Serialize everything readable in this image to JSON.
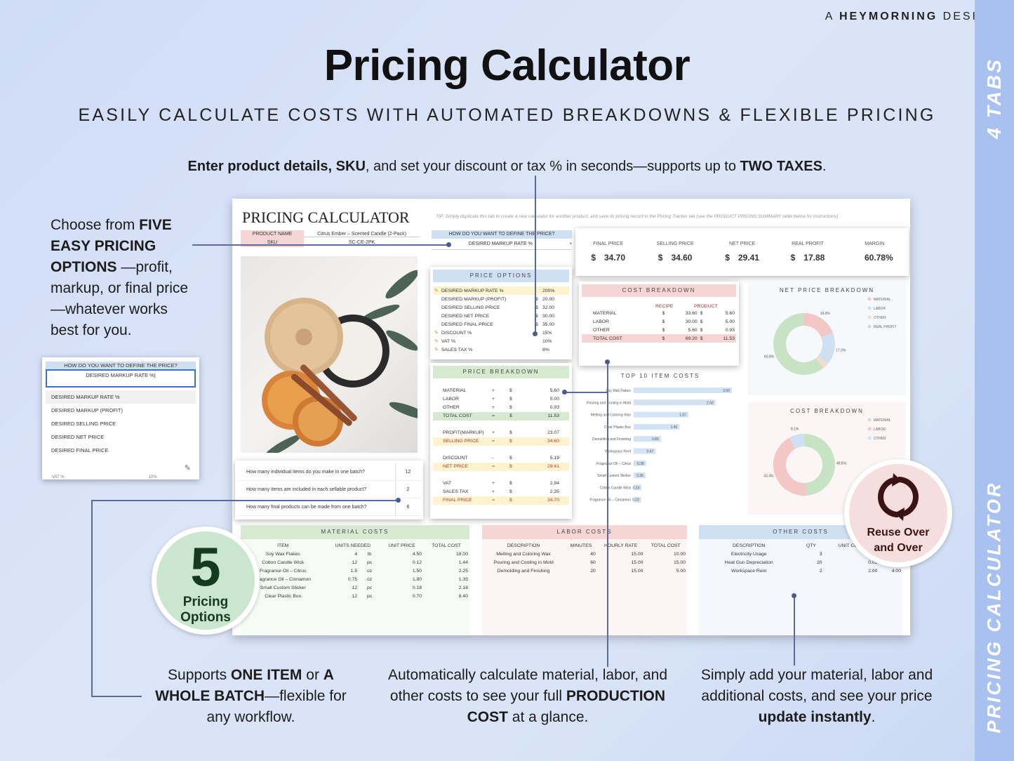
{
  "brand": {
    "prefix": "A",
    "name": "HEYMORNING",
    "suffix": "DESIGN"
  },
  "title": "Pricing Calculator",
  "subtitle": "EASILY CALCULATE COSTS WITH AUTOMATED BREAKDOWNS & FLEXIBLE PRICING",
  "top_callout": {
    "b1": "Enter product details, SKU",
    "t1": ", and set your discount or tax % in seconds—supports up to ",
    "b2": "TWO TAXES",
    "t2": "."
  },
  "left_callout": {
    "t0": "Choose from ",
    "b1": "FIVE EASY PRICING OPTIONS",
    "t1": " —profit, markup, or final price—whatever works best for you."
  },
  "sidebar": {
    "tabs": "4 TABS",
    "title": "PRICING CALCULATOR"
  },
  "badge5": {
    "number": "5",
    "line1": "Pricing",
    "line2": "Options"
  },
  "reuse": {
    "line1": "Reuse Over",
    "line2": "and Over"
  },
  "bottom": {
    "left": {
      "t0": "Supports ",
      "b1": "ONE ITEM",
      "t1": " or ",
      "b2": "A WHOLE BATCH",
      "t2": "—flexible for any workflow."
    },
    "mid": {
      "t0": "Automatically calculate material, labor, and other costs to see your full ",
      "b1": "PRODUCTION COST",
      "t1": " at a glance."
    },
    "right": {
      "t0": "Simply add your material, labor and additional costs, and see your price ",
      "b1": "update instantly",
      "t1": "."
    }
  },
  "colors": {
    "sidebar": "#a9c1ef",
    "green": "#d6ead2",
    "red": "#f6d6d4",
    "blue": "#cfe0f3",
    "ring_green": "#c8e3c4",
    "ring_red": "#f2c7c6"
  },
  "sheet": {
    "title": "PRICING CALCULATOR",
    "tip": "TIP: Simply duplicate this tab to create a new calculator for another product, and save its pricing record in the Pricing Tracker tab (see the PRODUCT PRICING SUMMARY table below for instructions)",
    "product_name_label": "PRODUCT NAME",
    "product_name": "Citrus Ember – Scented Candle (2-Pack)",
    "sku_label": "SKU",
    "sku": "SC-CE-2PK",
    "define_q": "HOW DO YOU WANT TO DEFINE THE PRICE?",
    "define_a": "DESIRED MARKUP RATE %",
    "summary": [
      {
        "label": "FINAL PRICE",
        "cur": "$",
        "value": "34.70"
      },
      {
        "label": "SELLING PRICE",
        "cur": "$",
        "value": "34.60"
      },
      {
        "label": "NET PRICE",
        "cur": "$",
        "value": "29.41"
      },
      {
        "label": "REAL PROFIT",
        "cur": "$",
        "value": "17.88"
      },
      {
        "label": "MARGIN",
        "cur": "",
        "value": "60.78%"
      }
    ],
    "price_options": {
      "title": "PRICE OPTIONS",
      "rows": [
        {
          "label": "DESIRED MARKUP RATE %",
          "cur": "",
          "value": "200%"
        },
        {
          "label": "DESIRED MARKUP (PROFIT)",
          "cur": "$",
          "value": "20.00"
        },
        {
          "label": "DESIRED SELLING PRICE",
          "cur": "$",
          "value": "32.00"
        },
        {
          "label": "DESIRED NET PRICE",
          "cur": "$",
          "value": "30.00"
        },
        {
          "label": "DESIRED FINAL PRICE",
          "cur": "$",
          "value": "35.00"
        },
        {
          "label": "DISCOUNT %",
          "cur": "",
          "value": "15%"
        },
        {
          "label": "VAT %",
          "cur": "",
          "value": "10%"
        },
        {
          "label": "SALES TAX %",
          "cur": "",
          "value": "8%"
        }
      ]
    },
    "price_breakdown": {
      "title": "PRICE BREAKDOWN",
      "rows": [
        {
          "label": "MATERIAL",
          "op": "+",
          "cur": "$",
          "value": "5.60"
        },
        {
          "label": "LABOR",
          "op": "+",
          "cur": "$",
          "value": "5.00"
        },
        {
          "label": "OTHER",
          "op": "+",
          "cur": "$",
          "value": "0.93"
        },
        {
          "label": "TOTAL COST",
          "op": "=",
          "cur": "$",
          "value": "11.53"
        },
        {
          "label": "PROFIT(MARKUP)",
          "op": "+",
          "cur": "$",
          "value": "23.07"
        },
        {
          "label": "SELLING PRICE",
          "op": "=",
          "cur": "$",
          "value": "34.60"
        },
        {
          "label": "DISCOUNT",
          "op": "-",
          "cur": "$",
          "value": "5.19"
        },
        {
          "label": "NET PRICE",
          "op": "=",
          "cur": "$",
          "value": "29.41"
        },
        {
          "label": "VAT",
          "op": "+",
          "cur": "$",
          "value": "2.94"
        },
        {
          "label": "SALES TAX",
          "op": "+",
          "cur": "$",
          "value": "2.35"
        },
        {
          "label": "FINAL PRICE",
          "op": "=",
          "cur": "$",
          "value": "34.70"
        }
      ]
    },
    "cost_breakdown": {
      "title": "COST BREAKDOWN",
      "col1": "RECIPE",
      "col2": "PRODUCT",
      "rows": [
        {
          "label": "MATERIAL",
          "c1": "$",
          "v1": "33.60",
          "c2": "$",
          "v2": "5.60"
        },
        {
          "label": "LABOR",
          "c1": "$",
          "v1": "30.00",
          "c2": "$",
          "v2": "5.00"
        },
        {
          "label": "OTHER",
          "c1": "$",
          "v1": "5.60",
          "c2": "$",
          "v2": "0.93"
        },
        {
          "label": "TOTAL COST",
          "c1": "$",
          "v1": "69.20",
          "c2": "$",
          "v2": "11.53"
        }
      ]
    },
    "batch": [
      {
        "q": "How many individual items do you make in one batch?",
        "v": "12"
      },
      {
        "q": "How many items are included in each sellable product?",
        "v": "2"
      },
      {
        "q": "How many final products can be made from one batch?",
        "v": "6"
      }
    ],
    "dropdown": {
      "question": "HOW DO YOU WANT TO DEFINE THE PRICE?",
      "value": "DESIRED MARKUP RATE %",
      "options": [
        "DESIRED MARKUP RATE %",
        "DESIRED MARKUP (PROFIT)",
        "DESIRED SELLING PRICE",
        "DESIRED NET PRICE",
        "DESIRED FINAL PRICE"
      ],
      "peek": "VAT %",
      "peek_val": "10%"
    },
    "material_costs": {
      "title": "MATERIAL COSTS",
      "headers": [
        "ITEM",
        "UNITS NEEDED",
        "UNIT PRICE",
        "TOTAL COST"
      ],
      "rows": [
        {
          "item": "Soy Wax Flakes",
          "qty": "4",
          "unit": "lb",
          "price": "4.50",
          "total": "18.00"
        },
        {
          "item": "Cotton Candle Wick",
          "qty": "12",
          "unit": "pc",
          "price": "0.12",
          "total": "1.44"
        },
        {
          "item": "Fragrance Oil – Citrus",
          "qty": "1.5",
          "unit": "oz",
          "price": "1.50",
          "total": "2.25"
        },
        {
          "item": "Fragrance Oil – Cinnamon",
          "qty": "0.75",
          "unit": "oz",
          "price": "1.80",
          "total": "1.35"
        },
        {
          "item": "Small Custom Sticker",
          "qty": "12",
          "unit": "pc",
          "price": "0.18",
          "total": "2.16"
        },
        {
          "item": "Clear Plastic Box",
          "qty": "12",
          "unit": "pc",
          "price": "0.70",
          "total": "8.40"
        }
      ]
    },
    "labor_costs": {
      "title": "LABOR COSTS",
      "headers": [
        "DESCRIPTION",
        "MINUTES",
        "HOURLY RATE",
        "TOTAL COST"
      ],
      "rows": [
        {
          "desc": "Melting and Coloring Wax",
          "min": "40",
          "rate": "15.00",
          "total": "10.00"
        },
        {
          "desc": "Pouring and Cooling in Mold",
          "min": "60",
          "rate": "15.00",
          "total": "15.00"
        },
        {
          "desc": "Demolding and Finishing",
          "min": "20",
          "rate": "15.00",
          "total": "5.00"
        }
      ]
    },
    "other_costs": {
      "title": "OTHER COSTS",
      "headers": [
        "DESCRIPTION",
        "QTY",
        "UNIT COST",
        ""
      ],
      "rows": [
        {
          "desc": "Electricity Usage",
          "qty": "3",
          "cost": "0.20",
          "total": ""
        },
        {
          "desc": "Heat Gun Depreciation",
          "qty": "20",
          "cost": "0.05",
          "total": ""
        },
        {
          "desc": "Workspace Rent",
          "qty": "2",
          "cost": "2.00",
          "total": "4.00"
        }
      ]
    },
    "top10": {
      "title": "TOP 10 ITEM COSTS",
      "items": [
        {
          "label": "Soy Wax Flakes",
          "value": 3.0,
          "text": "3.00"
        },
        {
          "label": "Pouring and Cooling in Mold",
          "value": 2.5,
          "text": "2.50"
        },
        {
          "label": "Melting and Coloring Wax",
          "value": 1.67,
          "text": "1.67"
        },
        {
          "label": "Clear Plastic Box",
          "value": 1.4,
          "text": "1.40"
        },
        {
          "label": "Demolding and Finishing",
          "value": 0.83,
          "text": "0.83"
        },
        {
          "label": "Workspace Rent",
          "value": 0.67,
          "text": "0.67"
        },
        {
          "label": "Fragrance Oil – Citrus",
          "value": 0.38,
          "text": "0.38"
        },
        {
          "label": "Small Custom Sticker",
          "value": 0.36,
          "text": "0.36"
        },
        {
          "label": "Cotton Candle Wick",
          "value": 0.24,
          "text": "0.24"
        },
        {
          "label": "Fragrance Oil – Cinnamon",
          "value": 0.23,
          "text": "0.23"
        }
      ]
    },
    "net_donut": {
      "title": "NET PRICE BREAKDOWN",
      "legend": [
        "MATERIAL",
        "LABOR",
        "OTHER",
        "REAL PROFIT"
      ],
      "values": [
        19.0,
        17.0,
        3.2,
        60.8
      ],
      "labels": [
        "19.0%",
        "17.0%",
        "",
        "60.8%"
      ],
      "colors": [
        "#f2c7c6",
        "#cfe0f3",
        "#f3dad0",
        "#c8e3c4"
      ]
    },
    "cost_donut": {
      "title": "COST BREAKDOWN",
      "legend": [
        "MATERIAL",
        "LABOR",
        "OTHER"
      ],
      "values": [
        48.6,
        43.4,
        8.1
      ],
      "labels": [
        "48.6%",
        "43.4%",
        "8.1%"
      ],
      "colors": [
        "#c8e3c4",
        "#f2c7c6",
        "#cfe0f3"
      ]
    }
  }
}
